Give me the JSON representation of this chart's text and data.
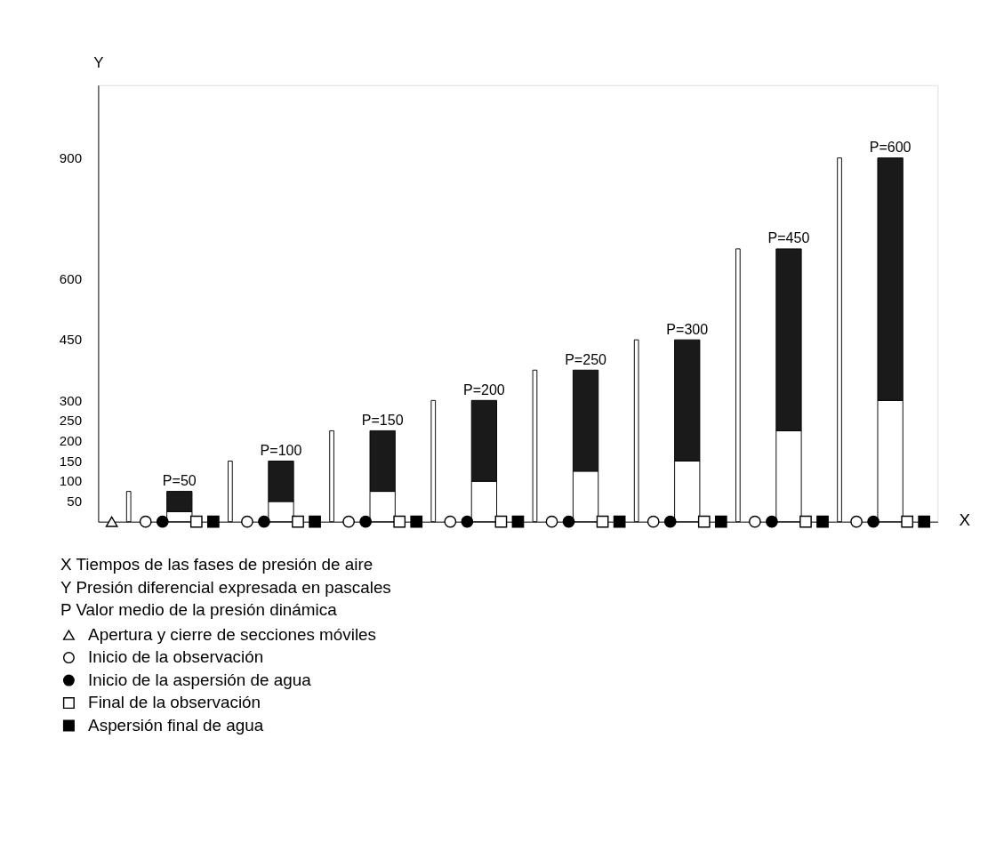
{
  "chart_data": {
    "type": "bar",
    "xlabel": "X",
    "ylabel": "Y",
    "categories": [
      null,
      null,
      null,
      null,
      null,
      null,
      null,
      null,
      null,
      null,
      null,
      null,
      null,
      null,
      null,
      null,
      null,
      null,
      null,
      null,
      null,
      null,
      null,
      null,
      null,
      null,
      null,
      null,
      null,
      null,
      null,
      null,
      null,
      null,
      null,
      null,
      null,
      null,
      null,
      null,
      null,
      null,
      null,
      null,
      null,
      null,
      null,
      null,
      null
    ],
    "stacked": true,
    "ylim": [
      0,
      1080
    ],
    "yticks": [
      50,
      100,
      150,
      200,
      250,
      300,
      450,
      600,
      900
    ],
    "grid": false,
    "tick_labels": "y",
    "legend": "bottom left",
    "annotations": [
      "X  Tiempos de las fases de presión de aire",
      "Y  Presión diferencial expresada en pascales",
      "P  Valor medio de la presión dinámica"
    ],
    "series": [
      {
        "type": "bar",
        "color": "#ffffff",
        "values": [
          null,
          75,
          null,
          null,
          null,
          null,
          null,
          150,
          null,
          null,
          null,
          null,
          null,
          225,
          null,
          null,
          null,
          null,
          null,
          300,
          null,
          null,
          null,
          null,
          null,
          375,
          null,
          null,
          null,
          null,
          null,
          450,
          null,
          null,
          null,
          null,
          null,
          675,
          null,
          null,
          null,
          null,
          null,
          900,
          null,
          null,
          null,
          null,
          null
        ]
      },
      {
        "type": "bar",
        "color": "#ffffff",
        "values": [
          null,
          null,
          null,
          null,
          25,
          null,
          null,
          null,
          null,
          null,
          50,
          null,
          null,
          null,
          null,
          null,
          75,
          null,
          null,
          null,
          null,
          null,
          100,
          null,
          null,
          null,
          null,
          null,
          125,
          null,
          null,
          null,
          null,
          null,
          150,
          null,
          null,
          null,
          null,
          null,
          225,
          null,
          null,
          null,
          null,
          null,
          300,
          null,
          null
        ]
      },
      {
        "type": "bar",
        "color": "#1a1a1a",
        "values": [
          null,
          null,
          null,
          null,
          50,
          null,
          null,
          null,
          null,
          null,
          100,
          null,
          null,
          null,
          null,
          null,
          150,
          null,
          null,
          null,
          null,
          null,
          200,
          null,
          null,
          null,
          null,
          null,
          250,
          null,
          null,
          null,
          null,
          null,
          300,
          null,
          null,
          null,
          null,
          null,
          450,
          null,
          null,
          null,
          null,
          null,
          600,
          null,
          null
        ],
        "value_labels": [
          null,
          null,
          null,
          null,
          "P=50",
          null,
          null,
          null,
          null,
          null,
          "P=100",
          null,
          null,
          null,
          null,
          null,
          "P=150",
          null,
          null,
          null,
          null,
          null,
          "P=200",
          null,
          null,
          null,
          null,
          null,
          "P=250",
          null,
          null,
          null,
          null,
          null,
          "P=300",
          null,
          null,
          null,
          null,
          null,
          "P=450",
          null,
          null,
          null,
          null,
          null,
          "P=600",
          null,
          null
        ]
      },
      {
        "type": "scatter",
        "name": "Apertura y cierre de secciones móviles",
        "marker": "triangle",
        "color": "#ffffff",
        "values": [
          0,
          null,
          null,
          null,
          null,
          null,
          null,
          null,
          null,
          null,
          null,
          null,
          null,
          null,
          null,
          null,
          null,
          null,
          null,
          null,
          null,
          null,
          null,
          null,
          null,
          null,
          null,
          null,
          null,
          null,
          null,
          null,
          null,
          null,
          null,
          null,
          null,
          null,
          null,
          null,
          null,
          null,
          null,
          null,
          null,
          null,
          null,
          null,
          null
        ]
      },
      {
        "type": "scatter",
        "name": "Inicio de la observación",
        "marker": "circle",
        "color": "#ffffff",
        "values": [
          null,
          null,
          0,
          null,
          null,
          null,
          null,
          null,
          0,
          null,
          null,
          null,
          null,
          null,
          0,
          null,
          null,
          null,
          null,
          null,
          0,
          null,
          null,
          null,
          null,
          null,
          0,
          null,
          null,
          null,
          null,
          null,
          0,
          null,
          null,
          null,
          null,
          null,
          0,
          null,
          null,
          null,
          null,
          null,
          0,
          null,
          null,
          null,
          null
        ]
      },
      {
        "type": "scatter",
        "name": "Inicio de la aspersión de agua",
        "marker": "circle",
        "color": "#000000",
        "values": [
          null,
          null,
          null,
          0,
          null,
          null,
          null,
          null,
          null,
          0,
          null,
          null,
          null,
          null,
          null,
          0,
          null,
          null,
          null,
          null,
          null,
          0,
          null,
          null,
          null,
          null,
          null,
          0,
          null,
          null,
          null,
          null,
          null,
          0,
          null,
          null,
          null,
          null,
          null,
          0,
          null,
          null,
          null,
          null,
          null,
          0,
          null,
          null,
          null
        ]
      },
      {
        "type": "scatter",
        "name": "Final de la observación",
        "marker": "square",
        "color": "#ffffff",
        "values": [
          null,
          null,
          null,
          null,
          null,
          0,
          null,
          null,
          null,
          null,
          null,
          0,
          null,
          null,
          null,
          null,
          null,
          0,
          null,
          null,
          null,
          null,
          null,
          0,
          null,
          null,
          null,
          null,
          null,
          0,
          null,
          null,
          null,
          null,
          null,
          0,
          null,
          null,
          null,
          null,
          null,
          0,
          null,
          null,
          null,
          null,
          null,
          0,
          null
        ]
      },
      {
        "type": "scatter",
        "name": "Aspersión final de agua",
        "marker": "square",
        "color": "#000000",
        "values": [
          null,
          null,
          null,
          null,
          null,
          null,
          0,
          null,
          null,
          null,
          null,
          null,
          0,
          null,
          null,
          null,
          null,
          null,
          0,
          null,
          null,
          null,
          null,
          null,
          0,
          null,
          null,
          null,
          null,
          null,
          0,
          null,
          null,
          null,
          null,
          null,
          0,
          null,
          null,
          null,
          null,
          null,
          0,
          null,
          null,
          null,
          null,
          null,
          0
        ]
      }
    ]
  }
}
